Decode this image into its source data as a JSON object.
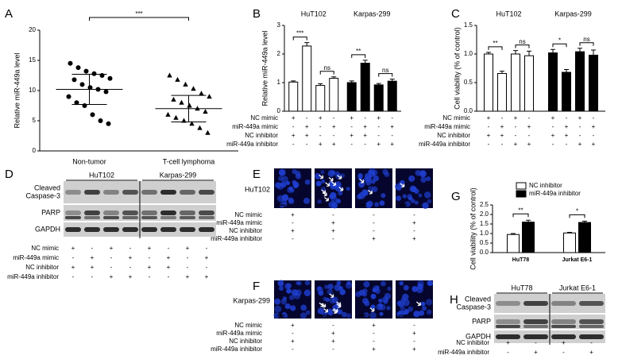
{
  "chart_data": [
    {
      "type": "scatter",
      "letter": "A",
      "ylabel": "Relative miR-449a level",
      "categories": [
        "Non-tumor",
        "T-cell lymphoma"
      ],
      "series": [
        {
          "marker": "circle",
          "color": "#000000",
          "values": [
            14.5,
            13.8,
            13.2,
            12.8,
            12.5,
            12,
            11.8,
            11,
            10.5,
            10.2,
            9.8,
            9,
            8,
            7.5,
            6,
            5,
            4.5
          ],
          "mean": 10.2,
          "error": 2.5
        },
        {
          "marker": "triangle",
          "color": "#000000",
          "values": [
            12.5,
            11.8,
            11,
            10.3,
            9.5,
            9,
            8.5,
            8,
            7.5,
            7,
            6.5,
            6,
            5.5,
            5,
            4.5,
            3.8,
            3
          ],
          "mean": 7,
          "error": 2.2
        }
      ],
      "significance": [
        "***"
      ],
      "ylim": [
        0,
        20
      ],
      "yticks": [
        0,
        5,
        10,
        15,
        20
      ]
    },
    {
      "type": "bar",
      "letter": "B",
      "ylabel": "Relative miR-449a level",
      "series": [
        {
          "name": "HuT102",
          "color": "#ffffff",
          "values": [
            1.02,
            2.28,
            0.9,
            1.15
          ],
          "errors": [
            0.04,
            0.12,
            0.06,
            0.05
          ],
          "significance": [
            "***",
            "ns"
          ]
        },
        {
          "name": "Karpas-299",
          "color": "#000000",
          "values": [
            1.0,
            1.68,
            0.92,
            1.05
          ],
          "errors": [
            0.06,
            0.1,
            0.05,
            0.07
          ],
          "significance": [
            "**",
            "ns"
          ]
        }
      ],
      "treatments": [
        {
          "label": "NC mimic",
          "values": [
            "+",
            "-",
            "+",
            "-",
            "+",
            "-",
            "+",
            "-"
          ]
        },
        {
          "label": "miR-449a mimic",
          "values": [
            "-",
            "+",
            "-",
            "+",
            "-",
            "+",
            "-",
            "+"
          ]
        },
        {
          "label": "NC inhibitor",
          "values": [
            "+",
            "+",
            "-",
            "-",
            "+",
            "+",
            "-",
            "-"
          ]
        },
        {
          "label": "miR-449a inhibitor",
          "values": [
            "-",
            "-",
            "+",
            "+",
            "-",
            "-",
            "+",
            "+"
          ]
        }
      ],
      "ylim": [
        0,
        3
      ],
      "yticks": [
        0,
        1,
        2,
        3
      ]
    },
    {
      "type": "bar",
      "letter": "C",
      "ylabel": "Cell viability (% of control)",
      "series": [
        {
          "name": "HuT102",
          "color": "#ffffff",
          "values": [
            1.0,
            0.66,
            1.0,
            0.97
          ],
          "errors": [
            0.03,
            0.04,
            0.06,
            0.08
          ],
          "significance": [
            "**",
            "ns"
          ]
        },
        {
          "name": "Karpas-299",
          "color": "#000000",
          "values": [
            1.02,
            0.68,
            1.04,
            0.98
          ],
          "errors": [
            0.06,
            0.05,
            0.06,
            0.09
          ],
          "significance": [
            "*",
            "ns"
          ]
        }
      ],
      "treatments": [
        {
          "label": "NC mimic",
          "values": [
            "+",
            "-",
            "+",
            "-",
            "+",
            "-",
            "+",
            "-"
          ]
        },
        {
          "label": "miR-449a mimic",
          "values": [
            "-",
            "+",
            "-",
            "+",
            "-",
            "+",
            "-",
            "+"
          ]
        },
        {
          "label": "NC inhibitor",
          "values": [
            "+",
            "+",
            "-",
            "-",
            "+",
            "+",
            "-",
            "-"
          ]
        },
        {
          "label": "miR-449a inhibitor",
          "values": [
            "-",
            "-",
            "+",
            "+",
            "-",
            "-",
            "+",
            "+"
          ]
        }
      ],
      "ylim": [
        0,
        1.5
      ],
      "yticks": [
        {
          "value": 0,
          "label": "0.0"
        },
        0.5,
        {
          "value": 1,
          "label": "1.0"
        },
        1.5
      ]
    },
    {
      "type": "bar",
      "letter": "G",
      "ylabel": "Cell viability (% of control)",
      "categories": [
        "HuT78",
        "Jurkat E6-1"
      ],
      "series": [
        {
          "name": "NC inhibitor",
          "color": "#ffffff",
          "values": [
            0.95,
            1.03
          ],
          "errors": [
            0.05,
            0.03
          ]
        },
        {
          "name": "miR-449a inhibitor",
          "color": "#000000",
          "values": [
            1.6,
            1.58
          ],
          "errors": [
            0.1,
            0.07
          ]
        }
      ],
      "significance": [
        "**",
        "*"
      ],
      "legend": "top",
      "ylim": [
        0,
        2.5
      ],
      "yticks": [
        {
          "value": 0,
          "label": "0.0"
        },
        0.5,
        {
          "value": 1,
          "label": "1.0"
        },
        1.5,
        {
          "value": 2,
          "label": "2.0"
        },
        2.5
      ]
    }
  ],
  "blot_d": {
    "letter": "D",
    "groups": [
      "HuT102",
      "Karpas-299"
    ],
    "rows": [
      [
        "Cleaved",
        "Caspase-3"
      ],
      [
        "PARP"
      ],
      [
        "GAPDH"
      ]
    ],
    "treatments": [
      {
        "label": "NC mimic",
        "values": [
          "+",
          "-",
          "+",
          "-",
          "+",
          "-",
          "+",
          "-"
        ]
      },
      {
        "label": "miR-449a mimic",
        "values": [
          "-",
          "+",
          "-",
          "+",
          "-",
          "+",
          "-",
          "+"
        ]
      },
      {
        "label": "NC inhibitor",
        "values": [
          "+",
          "+",
          "-",
          "-",
          "+",
          "+",
          "-",
          "-"
        ]
      },
      {
        "label": "miR-449a inhibitor",
        "values": [
          "-",
          "-",
          "+",
          "+",
          "-",
          "-",
          "+",
          "+"
        ]
      }
    ]
  },
  "images_e": {
    "letter": "E",
    "cell_line": "HuT102",
    "treatments": [
      {
        "label": "NC mimic",
        "values": [
          "+",
          "-",
          "-",
          "-"
        ]
      },
      {
        "label": "miR-449a mimic",
        "values": [
          "-",
          "+",
          "-",
          "+"
        ]
      },
      {
        "label": "NC inhibitor",
        "values": [
          "+",
          "+",
          "-",
          "-"
        ]
      },
      {
        "label": "miR-449a inhibitor",
        "values": [
          "-",
          "-",
          "+",
          "+"
        ]
      }
    ]
  },
  "images_f": {
    "letter": "F",
    "cell_line": "Karpas-299",
    "treatments": [
      {
        "label": "NC mimic",
        "values": [
          "+",
          "-",
          "+",
          "-"
        ]
      },
      {
        "label": "miR-449a mimic",
        "values": [
          "-",
          "+",
          "-",
          "+"
        ]
      },
      {
        "label": "NC inhibitor",
        "values": [
          "+",
          "+",
          "-",
          "-"
        ]
      },
      {
        "label": "miR-449a inhibitor",
        "values": [
          "-",
          "-",
          "+",
          "+"
        ]
      }
    ]
  },
  "blot_h": {
    "letter": "H",
    "groups": [
      "HuT78",
      "Jurkat E6-1"
    ],
    "rows": [
      [
        "Cleaved",
        "Caspase-3"
      ],
      [
        "PARP"
      ],
      [
        "GAPDH"
      ]
    ],
    "treatments": [
      {
        "label": "NC inhibitor",
        "values": [
          "+",
          "-",
          "+",
          "-"
        ]
      },
      {
        "label": "miR-449a inhibitor",
        "values": [
          "-",
          "+",
          "-",
          "+"
        ]
      }
    ]
  }
}
